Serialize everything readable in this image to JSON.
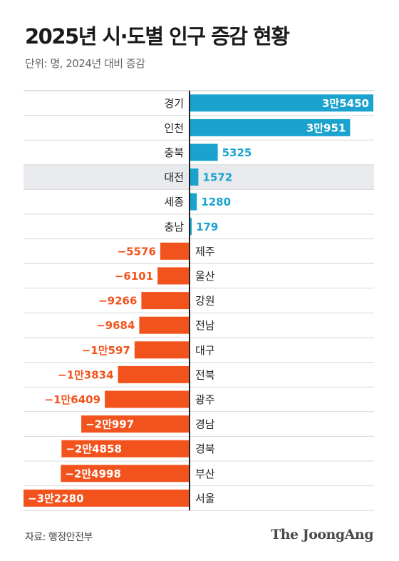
{
  "header": {
    "title": "2025년 시·도별 인구 증감 현황",
    "subtitle": "단위: 명, 2024년 대비 증감"
  },
  "footer": {
    "source": "자료: 행정안전부",
    "logo": "The JoongAng"
  },
  "colors": {
    "positive": "#1BA3CF",
    "negative": "#F2531D",
    "highlight_row": "#E8EAED",
    "divider": "#D9D9D9",
    "axis": "#222222"
  },
  "chart_data": {
    "type": "bar",
    "orientation": "horizontal",
    "title": "2025년 시·도별 인구 증감 현황",
    "unit": "명, 2024년 대비 증감",
    "highlighted_category": "대전",
    "xlim": [
      -32280,
      35450
    ],
    "rows": [
      {
        "region": "경기",
        "value": 35450,
        "label": "3만5450"
      },
      {
        "region": "인천",
        "value": 30951,
        "label": "3만951"
      },
      {
        "region": "충북",
        "value": 5325,
        "label": "5325"
      },
      {
        "region": "대전",
        "value": 1572,
        "label": "1572"
      },
      {
        "region": "세종",
        "value": 1280,
        "label": "1280"
      },
      {
        "region": "충남",
        "value": 179,
        "label": "179"
      },
      {
        "region": "제주",
        "value": -5576,
        "label": "−5576"
      },
      {
        "region": "울산",
        "value": -6101,
        "label": "−6101"
      },
      {
        "region": "강원",
        "value": -9266,
        "label": "−9266"
      },
      {
        "region": "전남",
        "value": -9684,
        "label": "−9684"
      },
      {
        "region": "대구",
        "value": -10597,
        "label": "−1만597"
      },
      {
        "region": "전북",
        "value": -13834,
        "label": "−1만3834"
      },
      {
        "region": "광주",
        "value": -16409,
        "label": "−1만6409"
      },
      {
        "region": "경남",
        "value": -20997,
        "label": "−2만997"
      },
      {
        "region": "경북",
        "value": -24858,
        "label": "−2만4858"
      },
      {
        "region": "부산",
        "value": -24998,
        "label": "−2만4998"
      },
      {
        "region": "서울",
        "value": -32280,
        "label": "−3만2280"
      }
    ]
  }
}
